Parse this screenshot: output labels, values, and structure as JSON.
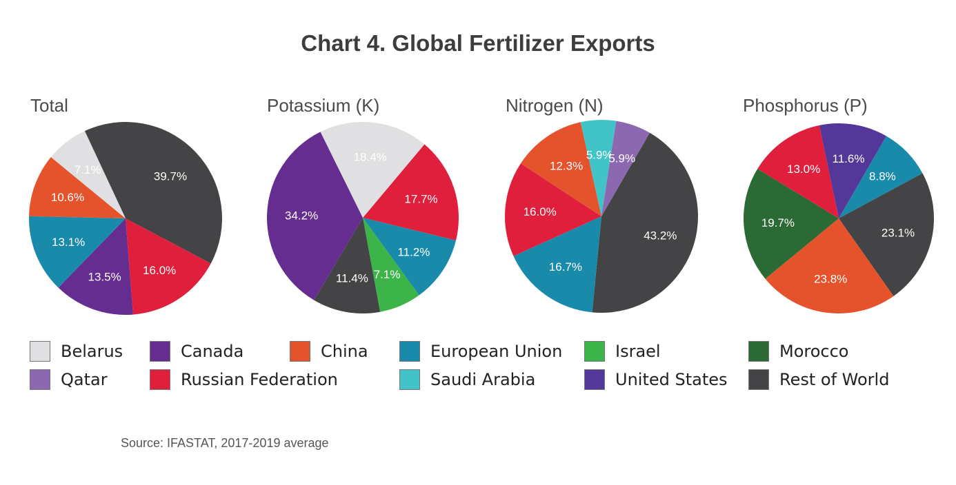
{
  "title": "Chart 4. Global Fertilizer Exports",
  "source": "Source: IFASTAT, 2017-2019 average",
  "colors": {
    "Belarus": "#e0e0e2",
    "Canada": "#652d90",
    "China": "#e5532d",
    "European Union": "#1a8aaa",
    "Israel": "#3cb44a",
    "Morocco": "#2b6a35",
    "Qatar": "#8c68b0",
    "Russian Federation": "#e01f3d",
    "Saudi Arabia": "#42c3c8",
    "United States": "#53389a",
    "Rest of World": "#444446"
  },
  "legend": [
    "Belarus",
    "Canada",
    "China",
    "European Union",
    "Israel",
    "Morocco",
    "Qatar",
    "Russian Federation",
    "Saudi Arabia",
    "United States",
    "Rest of World"
  ],
  "chart_data": [
    {
      "type": "pie",
      "title": "Total",
      "slices": [
        {
          "name": "Rest of World",
          "value": 39.7,
          "label": "39.7%"
        },
        {
          "name": "Russian Federation",
          "value": 16.0,
          "label": "16.0%"
        },
        {
          "name": "Canada",
          "value": 13.5,
          "label": "13.5%"
        },
        {
          "name": "European Union",
          "value": 13.1,
          "label": "13.1%"
        },
        {
          "name": "China",
          "value": 10.6,
          "label": "10.6%"
        },
        {
          "name": "Belarus",
          "value": 7.1,
          "label": "7.1%"
        }
      ]
    },
    {
      "type": "pie",
      "title": "Potassium (K)",
      "slices": [
        {
          "name": "Russian Federation",
          "value": 17.7,
          "label": "17.7%"
        },
        {
          "name": "European Union",
          "value": 11.2,
          "label": "11.2%"
        },
        {
          "name": "Israel",
          "value": 7.1,
          "label": "7.1%"
        },
        {
          "name": "Rest of World",
          "value": 11.4,
          "label": "11.4%"
        },
        {
          "name": "Canada",
          "value": 34.2,
          "label": "34.2%"
        },
        {
          "name": "Belarus",
          "value": 18.4,
          "label": "18.4%"
        }
      ]
    },
    {
      "type": "pie",
      "title": "Nitrogen (N)",
      "slices": [
        {
          "name": "Rest of World",
          "value": 43.2,
          "label": "43.2%"
        },
        {
          "name": "European Union",
          "value": 16.7,
          "label": "16.7%"
        },
        {
          "name": "Russian Federation",
          "value": 16.0,
          "label": "16.0%"
        },
        {
          "name": "China",
          "value": 12.3,
          "label": "12.3%"
        },
        {
          "name": "Saudi Arabia",
          "value": 5.9,
          "label": "5.9%"
        },
        {
          "name": "Qatar",
          "value": 5.9,
          "label": "5.9%"
        }
      ]
    },
    {
      "type": "pie",
      "title": "Phosphorus (P)",
      "slices": [
        {
          "name": "European Union",
          "value": 8.8,
          "label": "8.8%"
        },
        {
          "name": "Rest of World",
          "value": 23.1,
          "label": "23.1%"
        },
        {
          "name": "China",
          "value": 23.8,
          "label": "23.8%"
        },
        {
          "name": "Morocco",
          "value": 19.7,
          "label": "19.7%"
        },
        {
          "name": "Russian Federation",
          "value": 13.0,
          "label": "13.0%"
        },
        {
          "name": "United States",
          "value": 11.6,
          "label": "11.6%"
        }
      ]
    }
  ]
}
